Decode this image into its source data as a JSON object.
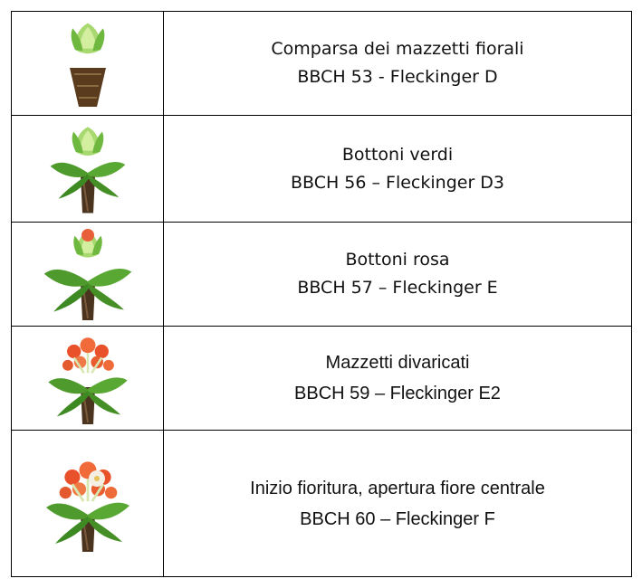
{
  "table": {
    "rows": [
      [
        "Comparsa dei mazzetti fiorali",
        "BBCH 53 - Fleckinger D"
      ],
      [
        "Bottoni verdi",
        "BBCH 56 – Fleckinger D3"
      ],
      [
        "Bottoni rosa",
        "BBCH 57 – Fleckinger E"
      ],
      [
        "Mazzetti divaricati",
        "BBCH 59 – Fleckinger E2"
      ],
      [
        "Inizio fioritura, apertura fiore centrale",
        "BBCH 60 – Fleckinger F"
      ]
    ]
  }
}
